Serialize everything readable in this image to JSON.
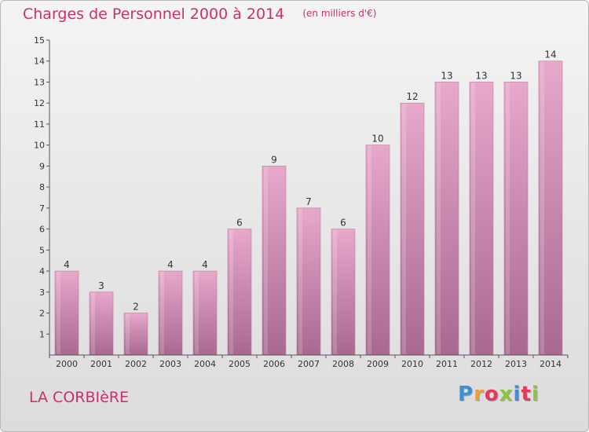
{
  "header": {
    "title": "Charges de Personnel 2000 à 2014",
    "subtitle": "(en milliers d'€)"
  },
  "footer": {
    "town": "LA CORBIèRE",
    "logo": {
      "letters": [
        "P",
        "r",
        "o",
        "x",
        "i",
        "t",
        "i"
      ],
      "colors": [
        "#3f8fd6",
        "#f0a030",
        "#e23a5c",
        "#8cc63f",
        "#3f8fd6",
        "#e23a5c",
        "#8cc63f"
      ]
    }
  },
  "chart_data": {
    "type": "bar",
    "title": "Charges de Personnel 2000 à 2014",
    "subtitle": "(en milliers d'€)",
    "categories": [
      "2000",
      "2001",
      "2002",
      "2003",
      "2004",
      "2005",
      "2006",
      "2007",
      "2008",
      "2009",
      "2010",
      "2011",
      "2012",
      "2013",
      "2014"
    ],
    "values": [
      4,
      3,
      2,
      4,
      4,
      6,
      9,
      7,
      6,
      10,
      12,
      13,
      13,
      13,
      14
    ],
    "data_labels": [
      "4",
      "3",
      "2",
      "4",
      "4",
      "6",
      "9",
      "7",
      "6",
      "10",
      "12",
      "13",
      "13",
      "13",
      "14"
    ],
    "yticks": [
      "1",
      "2",
      "3",
      "4",
      "5",
      "6",
      "7",
      "8",
      "9",
      "10",
      "11",
      "12",
      "13",
      "14",
      "15"
    ],
    "ylim": [
      0,
      15
    ],
    "grid": false,
    "colors": {
      "bar_light": "#e8a8cc",
      "bar_dark": "#a86890",
      "text": "#333333",
      "axis": "#555555"
    }
  }
}
